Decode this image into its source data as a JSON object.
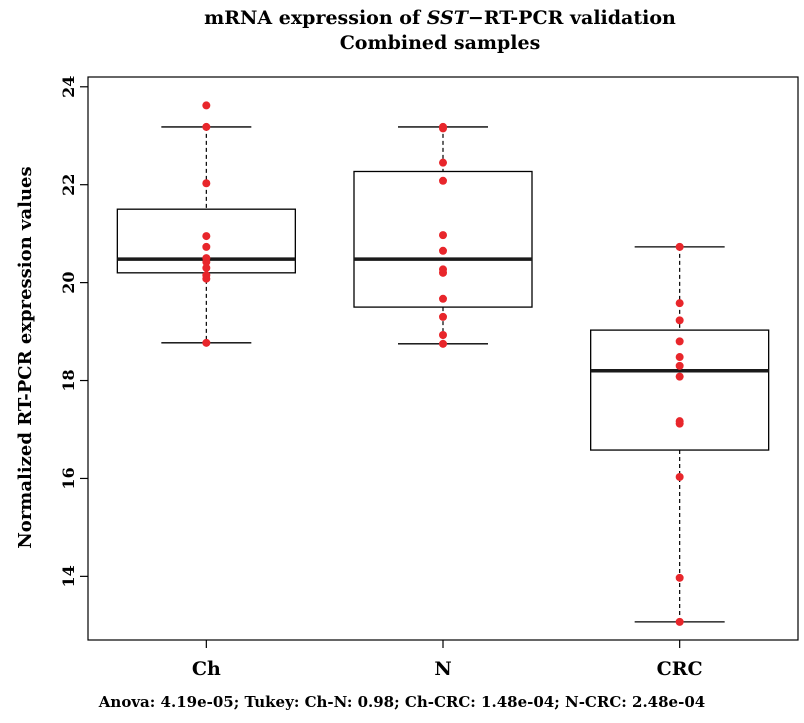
{
  "title": {
    "prefix": "mRNA expression of ",
    "gene": "SST",
    "suffix": "−RT-PCR validation",
    "subtitle": "Combined samples"
  },
  "footer": "Anova: 4.19e-05; Tukey: Ch-N: 0.98; Ch-CRC: 1.48e-04; N-CRC: 2.48e-04",
  "colors": {
    "points": "#e8262b",
    "box": "#000000",
    "median": "#1a1a1a"
  },
  "chart_data": {
    "type": "boxplot",
    "ylabel": "Normalized RT-PCR expression values",
    "xlabel": "",
    "ylim": [
      12.7,
      24.2
    ],
    "yticks": [
      14,
      16,
      18,
      20,
      22,
      24
    ],
    "categories": [
      "Ch",
      "N",
      "CRC"
    ],
    "boxes": [
      {
        "name": "Ch",
        "whisker_low": 18.77,
        "q1": 20.2,
        "median": 20.48,
        "q3": 21.5,
        "whisker_high": 23.18,
        "points": [
          23.62,
          23.18,
          22.03,
          20.95,
          20.73,
          20.5,
          20.42,
          20.3,
          20.15,
          20.08,
          18.77
        ]
      },
      {
        "name": "N",
        "whisker_low": 18.75,
        "q1": 19.5,
        "median": 20.48,
        "q3": 22.27,
        "whisker_high": 23.18,
        "points": [
          23.18,
          23.15,
          22.45,
          22.08,
          20.97,
          20.65,
          20.27,
          20.2,
          19.67,
          19.3,
          18.93,
          18.75
        ]
      },
      {
        "name": "CRC",
        "whisker_low": 13.07,
        "q1": 16.58,
        "median": 18.2,
        "q3": 19.03,
        "whisker_high": 20.73,
        "points": [
          20.73,
          19.58,
          19.23,
          18.8,
          18.48,
          18.3,
          18.08,
          17.17,
          17.12,
          16.03,
          13.97,
          13.07
        ]
      }
    ]
  }
}
